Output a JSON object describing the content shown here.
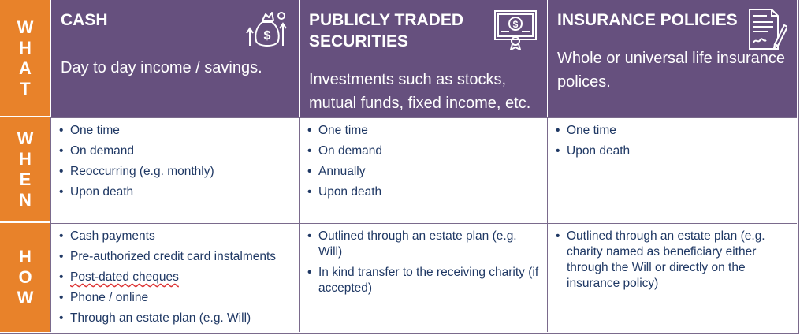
{
  "rows": {
    "what": [
      "W",
      "H",
      "A",
      "T"
    ],
    "when": [
      "W",
      "H",
      "E",
      "N"
    ],
    "how": [
      "H",
      "O",
      "W"
    ]
  },
  "columns": [
    {
      "title": "CASH",
      "description": "Day to day income /  savings.",
      "icon": "money-bag-icon",
      "when": [
        "One time",
        "On demand",
        "Reoccurring (e.g. monthly)",
        "Upon death"
      ],
      "how": [
        "Cash payments",
        "Pre-authorized credit card instalments",
        "Post-dated cheques",
        "Phone / online",
        "Through an estate plan (e.g. Will)"
      ]
    },
    {
      "title": "PUBLICLY TRADED SECURITIES",
      "description": "Investments such as stocks, mutual funds, fixed income, etc.",
      "icon": "certificate-icon",
      "when": [
        "One time",
        "On demand",
        "Annually",
        "Upon death"
      ],
      "how": [
        "Outlined through an estate plan (e.g. Will)",
        "In kind transfer to the receiving charity (if accepted)"
      ]
    },
    {
      "title": "INSURANCE POLICIES",
      "description": "Whole or universal life insurance polices.",
      "icon": "contract-pen-icon",
      "when": [
        "One time",
        "Upon death"
      ],
      "how": [
        "Outlined through an estate plan (e.g. charity named as beneficiary either through the Will or directly on the insurance policy)"
      ]
    }
  ],
  "colors": {
    "side_orange": "#e8822a",
    "header_purple": "#66507e",
    "body_text": "#1f3864"
  }
}
